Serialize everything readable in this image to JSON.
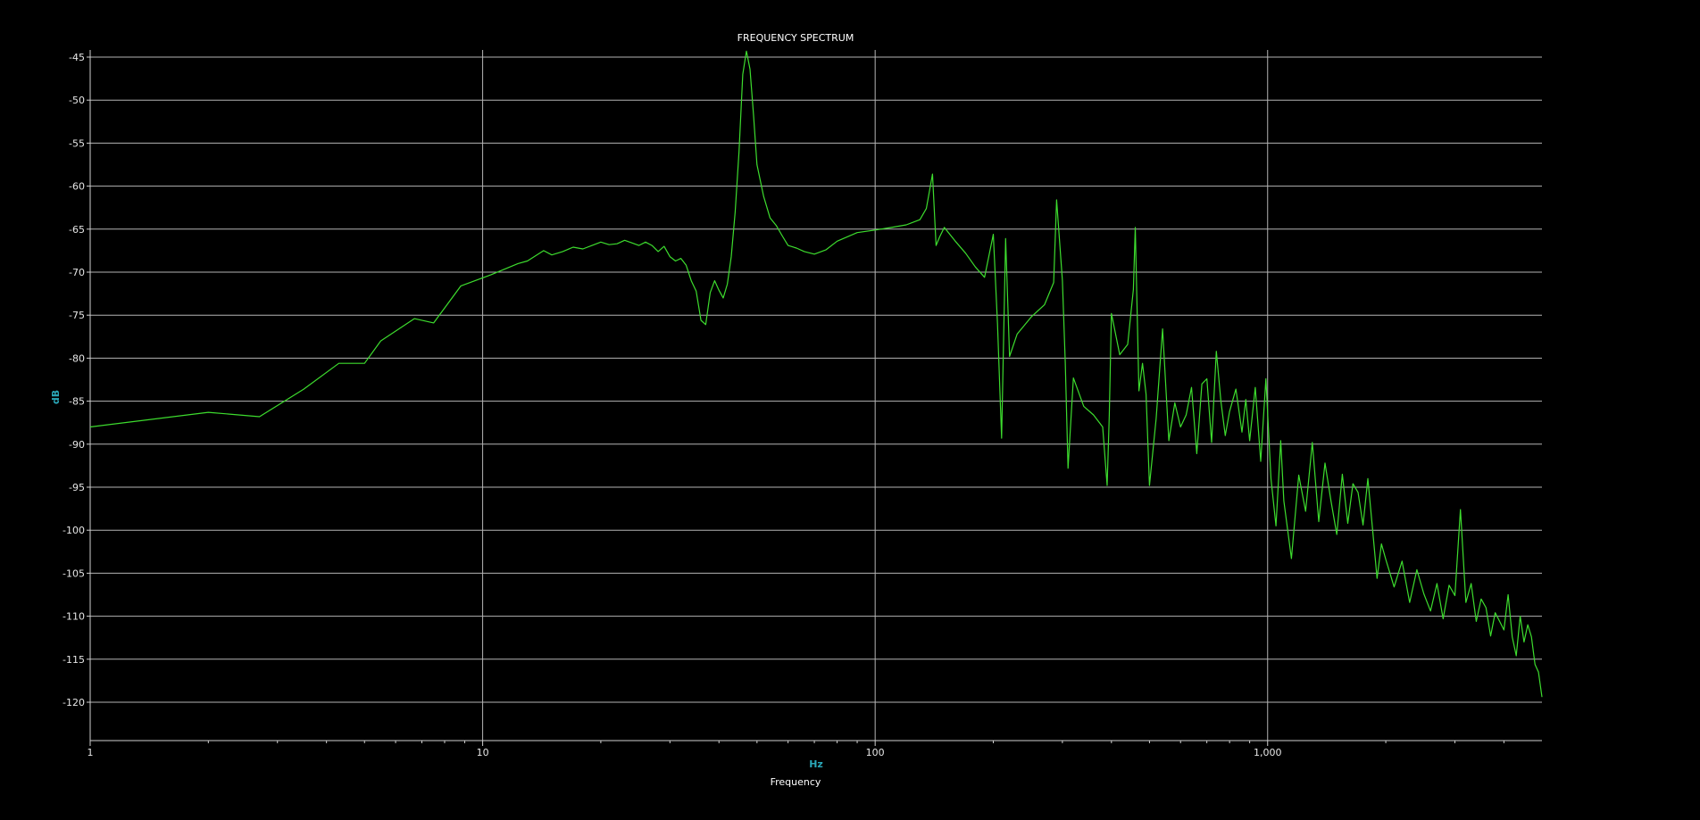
{
  "chart_data": {
    "type": "line",
    "title": "FREQUENCY SPECTRUM",
    "xlabel": "Frequency",
    "xunit": "Hz",
    "yunit": "dB",
    "xscale": "log",
    "xlim": [
      1,
      5000
    ],
    "ylim": [
      -125,
      -44
    ],
    "grid": true,
    "legend": "none",
    "colors": {
      "background": "#000000",
      "grid": "#b4b4b4",
      "line": "#3ddc2e",
      "text": "#e6e6e6",
      "unit": "#2aa7b8"
    },
    "x_major_ticks": [
      {
        "value": 1,
        "label": "1"
      },
      {
        "value": 10,
        "label": "10"
      },
      {
        "value": 100,
        "label": "100"
      },
      {
        "value": 1000,
        "label": "1,000"
      }
    ],
    "x_minor_ticks": [
      2,
      3,
      4,
      5,
      6,
      7,
      8,
      9,
      20,
      30,
      40,
      50,
      60,
      70,
      80,
      90,
      200,
      300,
      400,
      500,
      600,
      700,
      800,
      900,
      2000,
      3000,
      4000
    ],
    "y_ticks": [
      {
        "value": -45,
        "label": "-45"
      },
      {
        "value": -50,
        "label": "-50"
      },
      {
        "value": -55,
        "label": "-55"
      },
      {
        "value": -60,
        "label": "-60"
      },
      {
        "value": -65,
        "label": "-65"
      },
      {
        "value": -70,
        "label": "-70"
      },
      {
        "value": -75,
        "label": "-75"
      },
      {
        "value": -80,
        "label": "-80"
      },
      {
        "value": -85,
        "label": "-85"
      },
      {
        "value": -90,
        "label": "-90"
      },
      {
        "value": -95,
        "label": "-95"
      },
      {
        "value": -100,
        "label": "-100"
      },
      {
        "value": -105,
        "label": "-105"
      },
      {
        "value": -110,
        "label": "-110"
      },
      {
        "value": -115,
        "label": "-115"
      },
      {
        "value": -120,
        "label": "-120"
      }
    ],
    "series": [
      {
        "x": [
          1,
          2,
          2.7,
          3.5,
          4.3,
          5,
          5.5,
          6.7,
          7.5,
          8.8,
          10.5,
          12.3,
          13,
          14.3,
          15,
          16,
          17,
          18,
          19,
          20,
          21,
          22,
          23,
          24,
          25,
          26,
          27,
          28,
          29,
          30,
          31,
          32,
          33,
          34,
          35,
          36,
          37,
          38,
          39,
          40,
          41,
          42,
          43,
          44,
          45,
          46,
          47,
          48,
          49,
          50,
          52,
          54,
          56,
          58,
          60,
          63,
          66,
          70,
          75,
          80,
          90,
          100,
          110,
          120,
          130,
          135,
          140,
          143,
          146,
          150,
          155,
          160,
          170,
          180,
          190,
          200,
          205,
          210,
          215,
          220,
          230,
          250,
          270,
          285,
          290,
          300,
          305,
          310,
          320,
          340,
          360,
          380,
          390,
          395,
          400,
          420,
          440,
          455,
          460,
          470,
          480,
          490,
          500,
          520,
          540,
          560,
          580,
          600,
          620,
          640,
          660,
          680,
          700,
          720,
          740,
          760,
          780,
          800,
          830,
          860,
          880,
          900,
          930,
          960,
          990,
          1020,
          1050,
          1080,
          1100,
          1150,
          1200,
          1250,
          1300,
          1350,
          1400,
          1450,
          1500,
          1550,
          1600,
          1650,
          1700,
          1750,
          1800,
          1850,
          1900,
          1950,
          2000,
          2100,
          2200,
          2300,
          2400,
          2500,
          2600,
          2700,
          2800,
          2900,
          3000,
          3100,
          3200,
          3300,
          3400,
          3500,
          3600,
          3700,
          3800,
          3900,
          4000,
          4100,
          4200,
          4300,
          4400,
          4500,
          4600,
          4700,
          4800,
          4900,
          5000
        ],
        "y": [
          -88,
          -86.3,
          -86.8,
          -83.6,
          -80.6,
          -80.6,
          -78,
          -75.4,
          -75.9,
          -71.6,
          -70.3,
          -69,
          -68.7,
          -67.5,
          -68,
          -67.6,
          -67.1,
          -67.3,
          -66.9,
          -66.5,
          -66.8,
          -66.7,
          -66.3,
          -66.6,
          -66.9,
          -66.5,
          -66.9,
          -67.6,
          -67,
          -68.2,
          -68.7,
          -68.4,
          -69.2,
          -71,
          -72.2,
          -75.6,
          -76.1,
          -72.4,
          -71,
          -72.1,
          -73,
          -71.4,
          -68.2,
          -63,
          -56,
          -47,
          -44.3,
          -46.4,
          -51.8,
          -57.5,
          -61.2,
          -63.7,
          -64.6,
          -65.8,
          -66.9,
          -67.2,
          -67.6,
          -67.9,
          -67.4,
          -66.4,
          -65.4,
          -65.1,
          -64.8,
          -64.5,
          -63.9,
          -62.6,
          -58.6,
          -66.9,
          -65.9,
          -64.8,
          -65.6,
          -66.4,
          -67.8,
          -69.4,
          -70.6,
          -65.6,
          -76,
          -89.3,
          -66.1,
          -79.8,
          -77.2,
          -75.2,
          -73.8,
          -71.2,
          -61.6,
          -71,
          -80.5,
          -92.8,
          -82.3,
          -85.6,
          -86.6,
          -88,
          -94.8,
          -86.6,
          -74.8,
          -79.6,
          -78.4,
          -72,
          -64.8,
          -83.8,
          -80.6,
          -84.2,
          -94.8,
          -87,
          -76.6,
          -89.6,
          -85.2,
          -88,
          -86.6,
          -83.4,
          -91.1,
          -83,
          -82.4,
          -89.8,
          -79.2,
          -85,
          -89,
          -86.2,
          -83.6,
          -88.6,
          -84.8,
          -89.6,
          -83.4,
          -92,
          -82.4,
          -94,
          -99.5,
          -89.6,
          -96.6,
          -103.3,
          -93.6,
          -97.8,
          -89.8,
          -99,
          -92.2,
          -96.6,
          -100.5,
          -93.5,
          -99.2,
          -94.6,
          -95.6,
          -99.4,
          -94,
          -99.8,
          -105.6,
          -101.6,
          -103.4,
          -106.6,
          -103.6,
          -108.4,
          -104.6,
          -107.4,
          -109.4,
          -106.2,
          -110.3,
          -106.4,
          -107.6,
          -97.6,
          -108.4,
          -106.2,
          -110.6,
          -108,
          -109,
          -112.3,
          -109.6,
          -110.6,
          -111.6,
          -107.5,
          -112.4,
          -114.6,
          -110,
          -113,
          -111,
          -112.4,
          -115.6,
          -116.5,
          -119.4
        ]
      }
    ]
  }
}
